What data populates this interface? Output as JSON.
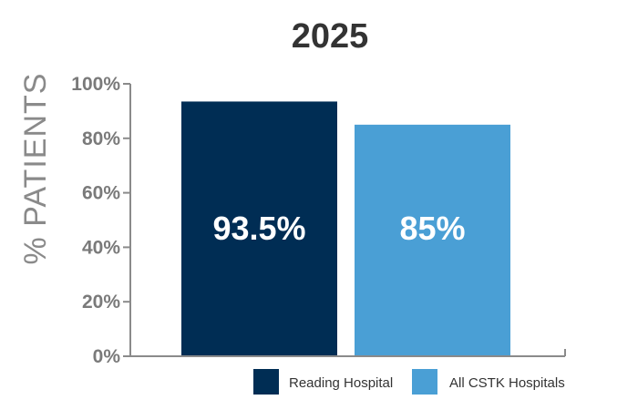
{
  "chart_data": {
    "type": "bar",
    "title": "2025",
    "ylabel": "% PATIENTS",
    "xlabel": "",
    "ylim": [
      0,
      100
    ],
    "yticks": [
      0,
      20,
      40,
      60,
      80,
      100
    ],
    "ytick_labels": [
      "0%",
      "20%",
      "40%",
      "60%",
      "80%",
      "100%"
    ],
    "categories": [
      "Reading Hospital",
      "All CSTK Hospitals"
    ],
    "values": [
      93.5,
      85
    ],
    "value_labels": [
      "93.5%",
      "85%"
    ],
    "colors": [
      "#002d54",
      "#4a9fd5"
    ],
    "legend": {
      "placement": "bottom-right",
      "entries": [
        "Reading Hospital",
        "All CSTK Hospitals"
      ]
    },
    "grid": false
  }
}
